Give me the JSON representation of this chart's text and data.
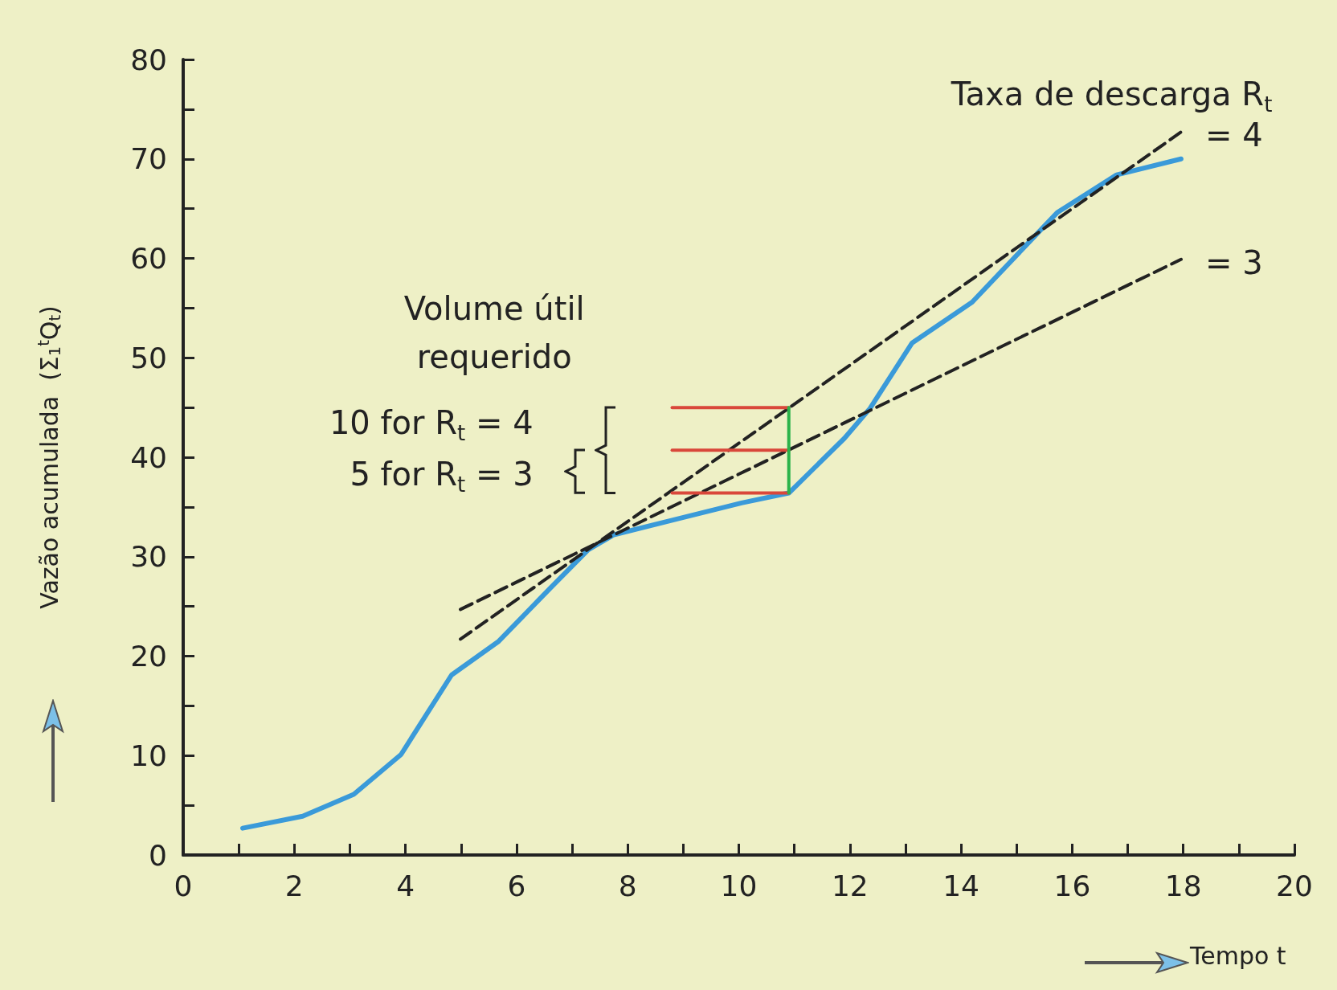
{
  "chart_data": {
    "type": "line",
    "xlabel": "Tempo t",
    "ylabel": "Vazão acumulada  (Σ$_{1}$$^{t}$Q$_{t}$)",
    "annotations": [
      "Taxa de descarga R$_{t}$",
      "Volume útil\nrequerido",
      "10 for R$_{t}$ = 4",
      "5 for R$_{t}$ = 3",
      {
        "text": "= 4",
        "x": 17.96,
        "y": 72.7
      },
      {
        "text": "= 3",
        "x": 17.96,
        "y": 59.9
      }
    ],
    "series": [
      {
        "color": "#3a9ad9",
        "x": [
          1.07,
          2.15,
          3.07,
          3.92,
          4.83,
          5.68,
          6.6,
          7.29,
          7.75,
          8.83,
          10.05,
          10.9,
          11.9,
          12.36,
          13.12,
          14.2,
          15.73,
          16.8,
          17.96
        ],
        "values": [
          2.7,
          3.9,
          6.1,
          10.1,
          18.1,
          21.5,
          26.8,
          30.7,
          32.2,
          33.7,
          35.4,
          36.4,
          41.9,
          44.9,
          51.5,
          55.6,
          64.6,
          68.4,
          70.0
        ]
      },
      {
        "color": "#222222",
        "line_style": "dashed",
        "x": [
          4.99,
          17.96
        ],
        "values": [
          21.7,
          72.7
        ]
      },
      {
        "color": "#222222",
        "line_style": "dashed",
        "x": [
          4.99,
          17.96
        ],
        "values": [
          24.7,
          59.9
        ]
      },
      {
        "color": "#d9473a",
        "x": [
          8.8,
          10.9
        ],
        "values": [
          45.0,
          45.0
        ]
      },
      {
        "color": "#d9473a",
        "x": [
          8.8,
          10.9
        ],
        "values": [
          40.7,
          40.7
        ]
      },
      {
        "color": "#d9473a",
        "x": [
          8.8,
          10.9
        ],
        "values": [
          36.4,
          36.4
        ]
      },
      {
        "color": "#2bb34a",
        "x": [
          10.9,
          10.9
        ],
        "values": [
          36.4,
          45.0
        ]
      }
    ],
    "xlim": [
      0,
      20
    ],
    "xticks": [
      0,
      {
        "value": 1,
        "label": null
      },
      2,
      {
        "value": 3,
        "label": null
      },
      4,
      {
        "value": 5,
        "label": null
      },
      6,
      {
        "value": 7,
        "label": null
      },
      8,
      {
        "value": 9,
        "label": null
      },
      10,
      {
        "value": 11,
        "label": null
      },
      12,
      {
        "value": 13,
        "label": null
      },
      14,
      {
        "value": 15,
        "label": null
      },
      16,
      {
        "value": 17,
        "label": null
      },
      18,
      {
        "value": 19,
        "label": null
      },
      20
    ],
    "ylim": [
      0,
      80
    ],
    "yticks": [
      0,
      {
        "value": 5,
        "label": null
      },
      10,
      {
        "value": 15,
        "label": null
      },
      20,
      {
        "value": 25,
        "label": null
      },
      30,
      {
        "value": 35,
        "label": null
      },
      40,
      {
        "value": 45,
        "label": null
      },
      50,
      {
        "value": 55,
        "label": null
      },
      60,
      {
        "value": 65,
        "label": null
      },
      70,
      {
        "value": 75,
        "label": null
      },
      80
    ],
    "grid": false,
    "marker": "none",
    "line_style": "solid"
  }
}
